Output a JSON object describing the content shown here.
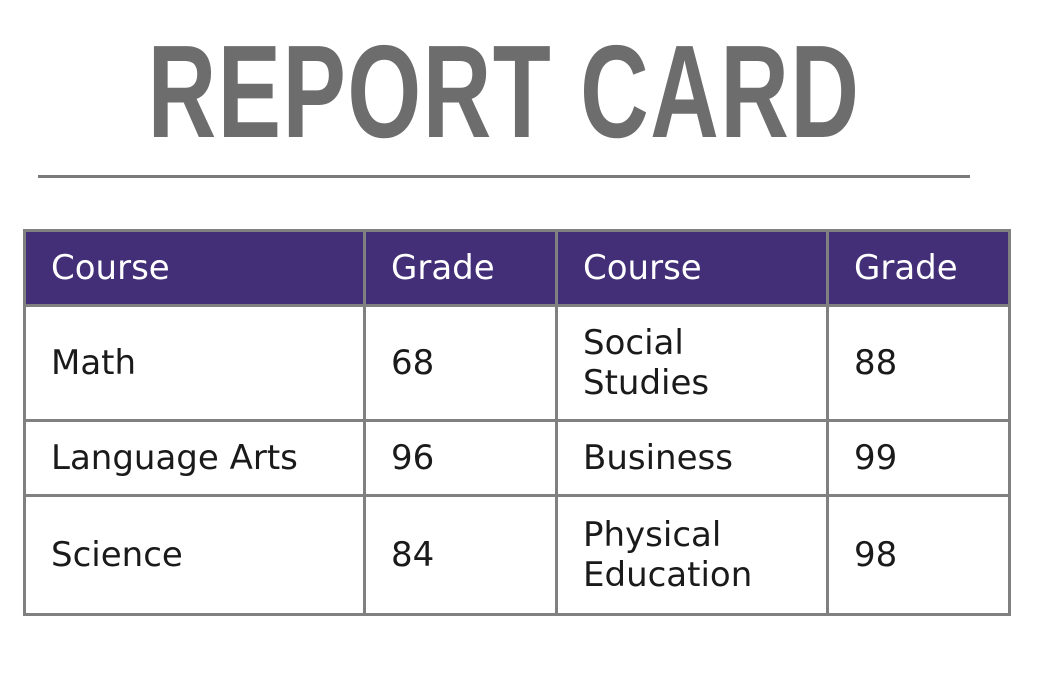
{
  "title": "REPORT CARD",
  "colors": {
    "header_bg": "#432e78",
    "title": "#6d6d6d",
    "border": "#808080"
  },
  "table": {
    "headers": [
      "Course",
      "Grade",
      "Course",
      "Grade"
    ],
    "rows": [
      [
        {
          "course": "Math",
          "grade": "68"
        },
        {
          "course": "Social Studies",
          "grade": "88"
        }
      ],
      [
        {
          "course": "Language Arts",
          "grade": "96"
        },
        {
          "course": "Business",
          "grade": "99"
        }
      ],
      [
        {
          "course": "Science",
          "grade": "84"
        },
        {
          "course": "Physical Education",
          "grade": "98"
        }
      ]
    ]
  }
}
